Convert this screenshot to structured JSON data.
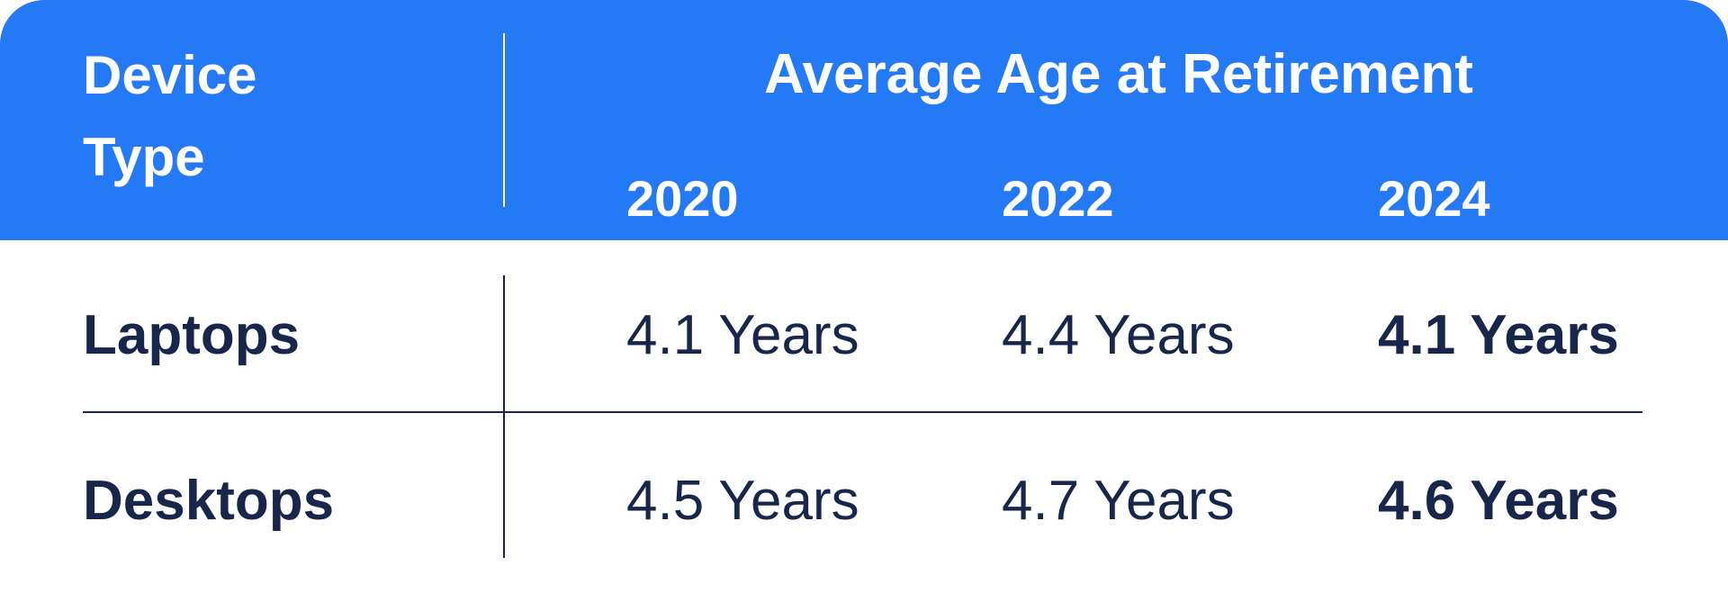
{
  "table": {
    "header": {
      "device_type": [
        "Device",
        "Type"
      ],
      "group": "Average Age at Retirement",
      "years": [
        "2020",
        "2022",
        "2024"
      ]
    },
    "rows": [
      [
        "Laptops",
        "4.1 Years",
        "4.4 Years",
        "4.1 Years"
      ],
      [
        "Desktops",
        "4.5 Years",
        "4.7 Years",
        "4.6 Years"
      ]
    ]
  }
}
